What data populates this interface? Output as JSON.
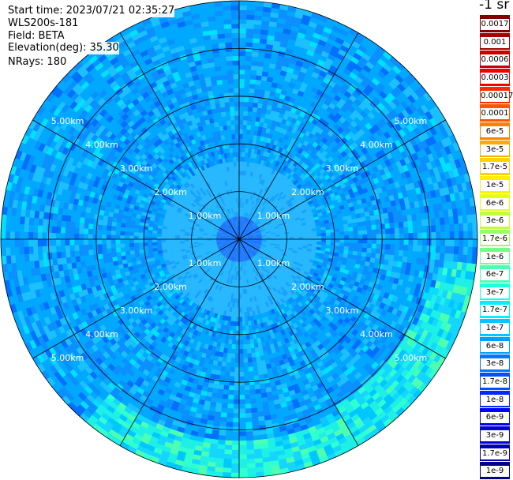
{
  "info": {
    "start_time": "Start time: 2023/07/21 02:35:27",
    "instrument": "WLS200s-181",
    "field": "Field: BETA",
    "elevation": "Elevation(deg): 35.30",
    "nrays": "NRays: 180"
  },
  "chart_data": {
    "type": "heatmap",
    "projection": "polar (PPI scan)",
    "field": "BETA",
    "units": "-1 sr",
    "range_rings": [
      "1.00km",
      "2.00km",
      "3.00km",
      "4.00km",
      "5.00km"
    ],
    "ring_km": [
      1,
      2,
      3,
      4,
      5
    ],
    "max_range_km": 5.0,
    "n_rays": 180,
    "spokes_deg": [
      0,
      30,
      60,
      90,
      120,
      150,
      180,
      210,
      240,
      270,
      300,
      330
    ],
    "colorbar": {
      "labels": [
        "0.0017",
        "0.001",
        "0.0006",
        "0.0003",
        "0.00017",
        "0.0001",
        "6e-5",
        "3e-5",
        "1.7e-5",
        "1e-5",
        "6e-6",
        "3e-6",
        "1.7e-6",
        "1e-6",
        "6e-7",
        "3e-7",
        "1.7e-7",
        "1e-7",
        "6e-8",
        "3e-8",
        "1.7e-8",
        "1e-8",
        "6e-9",
        "3e-9",
        "1.7e-9",
        "1e-9"
      ],
      "colors": [
        "#800000",
        "#a50000",
        "#c80000",
        "#f00000",
        "#ff2a00",
        "#ff5500",
        "#ff8000",
        "#ffaa00",
        "#ffd200",
        "#fff000",
        "#e5ff10",
        "#c0ff3c",
        "#9aff62",
        "#70ff8c",
        "#48ffb5",
        "#20ffdc",
        "#00f0ff",
        "#00c8ff",
        "#00a0ff",
        "#0078ff",
        "#0050ff",
        "#0028ff",
        "#0000ff",
        "#0000d8",
        "#0000b0",
        "#000088"
      ]
    },
    "field_levels": {
      "background": "1e-7 to 6e-8",
      "near_field_within_0.5km": "3e-8",
      "aerosol_band_south_east_4_to_5km": "3e-7 to 1.7e-7"
    }
  }
}
